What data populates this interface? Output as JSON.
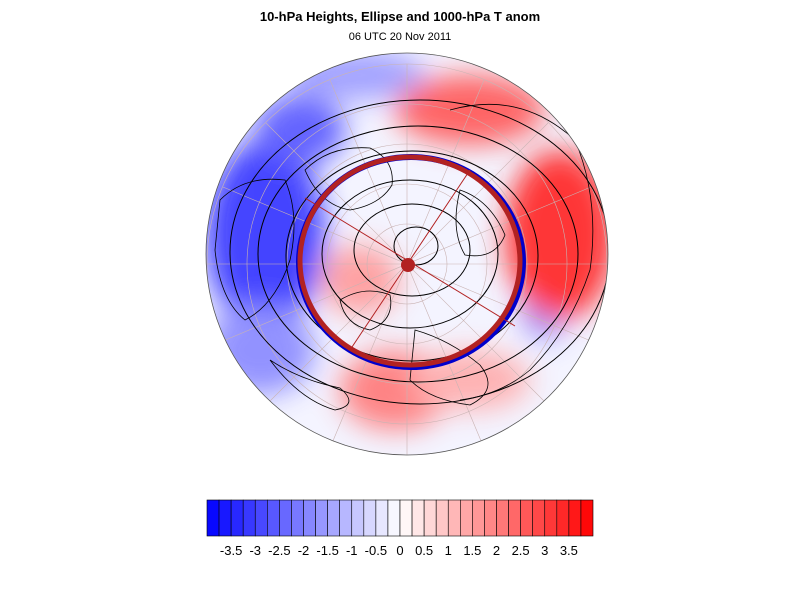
{
  "title": "10-hPa Heights, Ellipse and 1000-hPa T anom",
  "subtitle": "06 UTC 20 Nov 2011",
  "colorbar": {
    "min": -4,
    "max": 4,
    "step": 0.25,
    "neg_color": "#0000ff",
    "pos_color": "#ff0000",
    "tick_labels": [
      "-3.5",
      "-3",
      "-2.5",
      "-2",
      "-1.5",
      "-1",
      "-0.5",
      "0",
      "0.5",
      "1",
      "1.5",
      "2",
      "2.5",
      "3",
      "3.5"
    ]
  },
  "map": {
    "projection": "orthographic (north polar)",
    "ellipse_color": "#b22222",
    "ellipse_edge_color": "#0000cc",
    "contour_color": "#000000"
  }
}
